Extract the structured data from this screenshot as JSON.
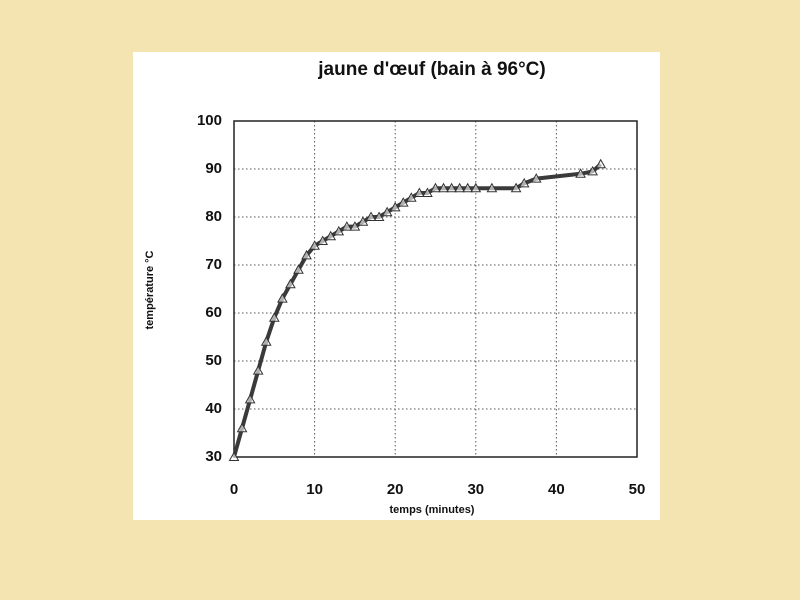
{
  "chart_data": {
    "type": "line",
    "title": "jaune d'œuf (bain à 96°C)",
    "x_label": "temps (minutes)",
    "y_label": "température °C",
    "x": [
      0,
      1,
      2,
      3,
      4,
      5,
      6,
      7,
      8,
      9,
      10,
      11,
      12,
      13,
      14,
      15,
      16,
      17,
      18,
      19,
      20,
      21,
      22,
      23,
      24,
      25,
      26,
      27,
      28,
      29,
      30,
      32,
      35,
      36,
      37.5,
      43,
      44.5,
      45.5
    ],
    "values": [
      30,
      36,
      42,
      48,
      54,
      59,
      63,
      66,
      69,
      72,
      74,
      75,
      76,
      77,
      78,
      78,
      79,
      80,
      80,
      81,
      82,
      83,
      84,
      85,
      85,
      86,
      86,
      86,
      86,
      86,
      86,
      86,
      86,
      87,
      88,
      89,
      89.5,
      91
    ],
    "color": "#3a3a3a",
    "marker": "triangle",
    "xlim": [
      0,
      50
    ],
    "ylim": [
      30,
      100
    ],
    "xticks": [
      0,
      10,
      20,
      30,
      40,
      50
    ],
    "yticks": [
      30,
      40,
      50,
      60,
      70,
      80,
      90,
      100
    ],
    "grid": true
  }
}
